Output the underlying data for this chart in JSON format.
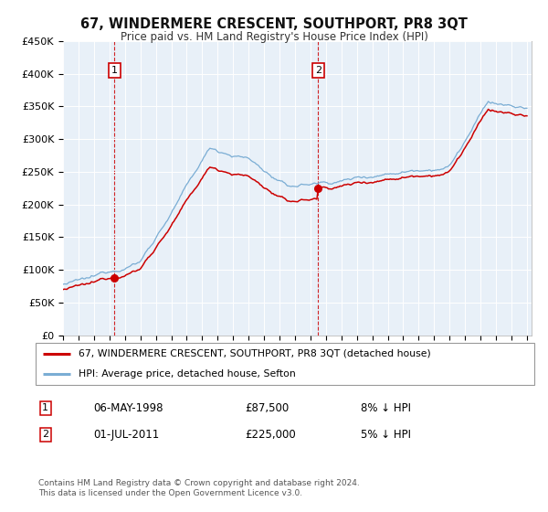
{
  "title": "67, WINDERMERE CRESCENT, SOUTHPORT, PR8 3QT",
  "subtitle": "Price paid vs. HM Land Registry's House Price Index (HPI)",
  "legend_label_red": "67, WINDERMERE CRESCENT, SOUTHPORT, PR8 3QT (detached house)",
  "legend_label_blue": "HPI: Average price, detached house, Sefton",
  "transaction1_date": "06-MAY-1998",
  "transaction1_price": 87500,
  "transaction1_label": "1",
  "transaction1_hpi": "8% ↓ HPI",
  "transaction2_date": "01-JUL-2011",
  "transaction2_price": 225000,
  "transaction2_label": "2",
  "transaction2_hpi": "5% ↓ HPI",
  "footer": "Contains HM Land Registry data © Crown copyright and database right 2024.\nThis data is licensed under the Open Government Licence v3.0.",
  "background_color": "#e8f0f8",
  "red_color": "#cc0000",
  "blue_color": "#7aadd4",
  "ylim": [
    0,
    450000
  ],
  "yticks": [
    0,
    50000,
    100000,
    150000,
    200000,
    250000,
    300000,
    350000,
    400000,
    450000
  ],
  "x_start_year": 1995,
  "x_end_year": 2025,
  "sale1_year": 1998.35,
  "sale2_year": 2011.5,
  "sale1_price": 87500,
  "sale2_price": 225000
}
